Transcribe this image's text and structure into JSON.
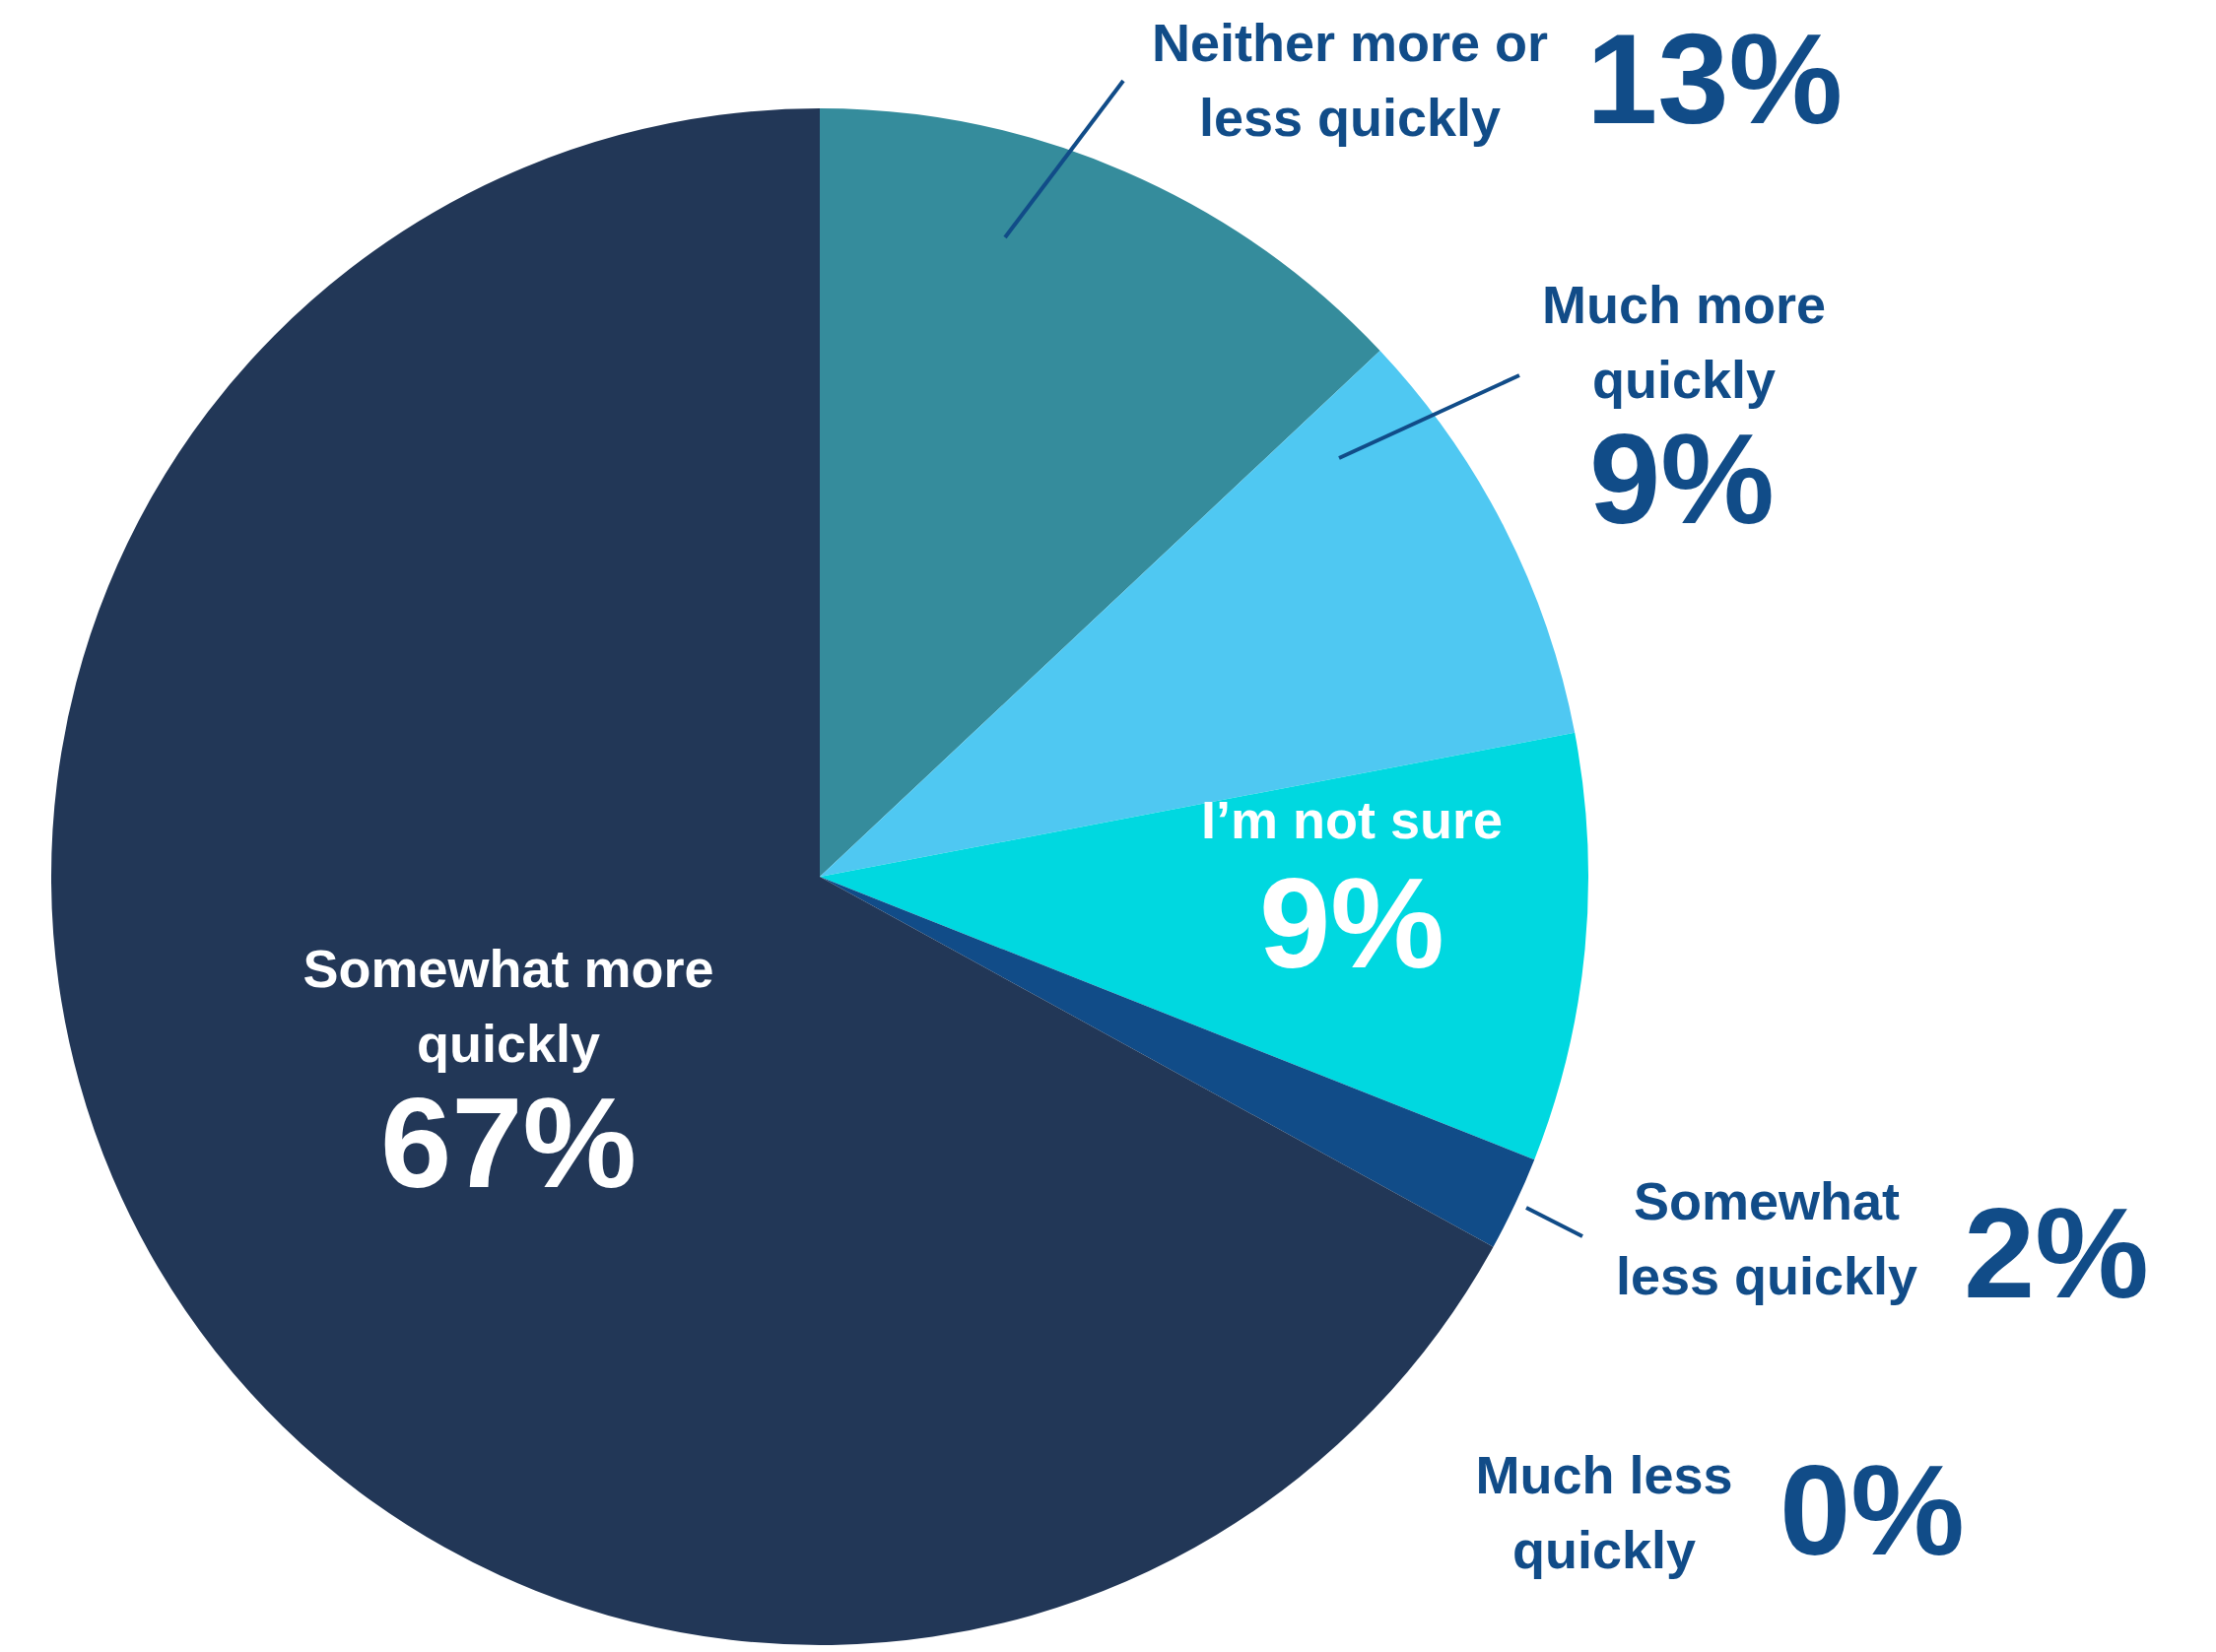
{
  "chart_data": {
    "type": "pie",
    "categories": [
      "Neither more or less quickly",
      "Much more quickly",
      "I’m not sure",
      "Somewhat less quickly",
      "Much less quickly",
      "Somewhat more quickly"
    ],
    "values": [
      13,
      9,
      9,
      2,
      0,
      67
    ],
    "value_labels": [
      "13%",
      "9%",
      "9%",
      "2%",
      "0%",
      "67%"
    ],
    "colors": [
      "#358c9c",
      "#4fc8f2",
      "#00d8e0",
      "#114c88",
      "#5a6f8f",
      "#223757"
    ]
  }
}
